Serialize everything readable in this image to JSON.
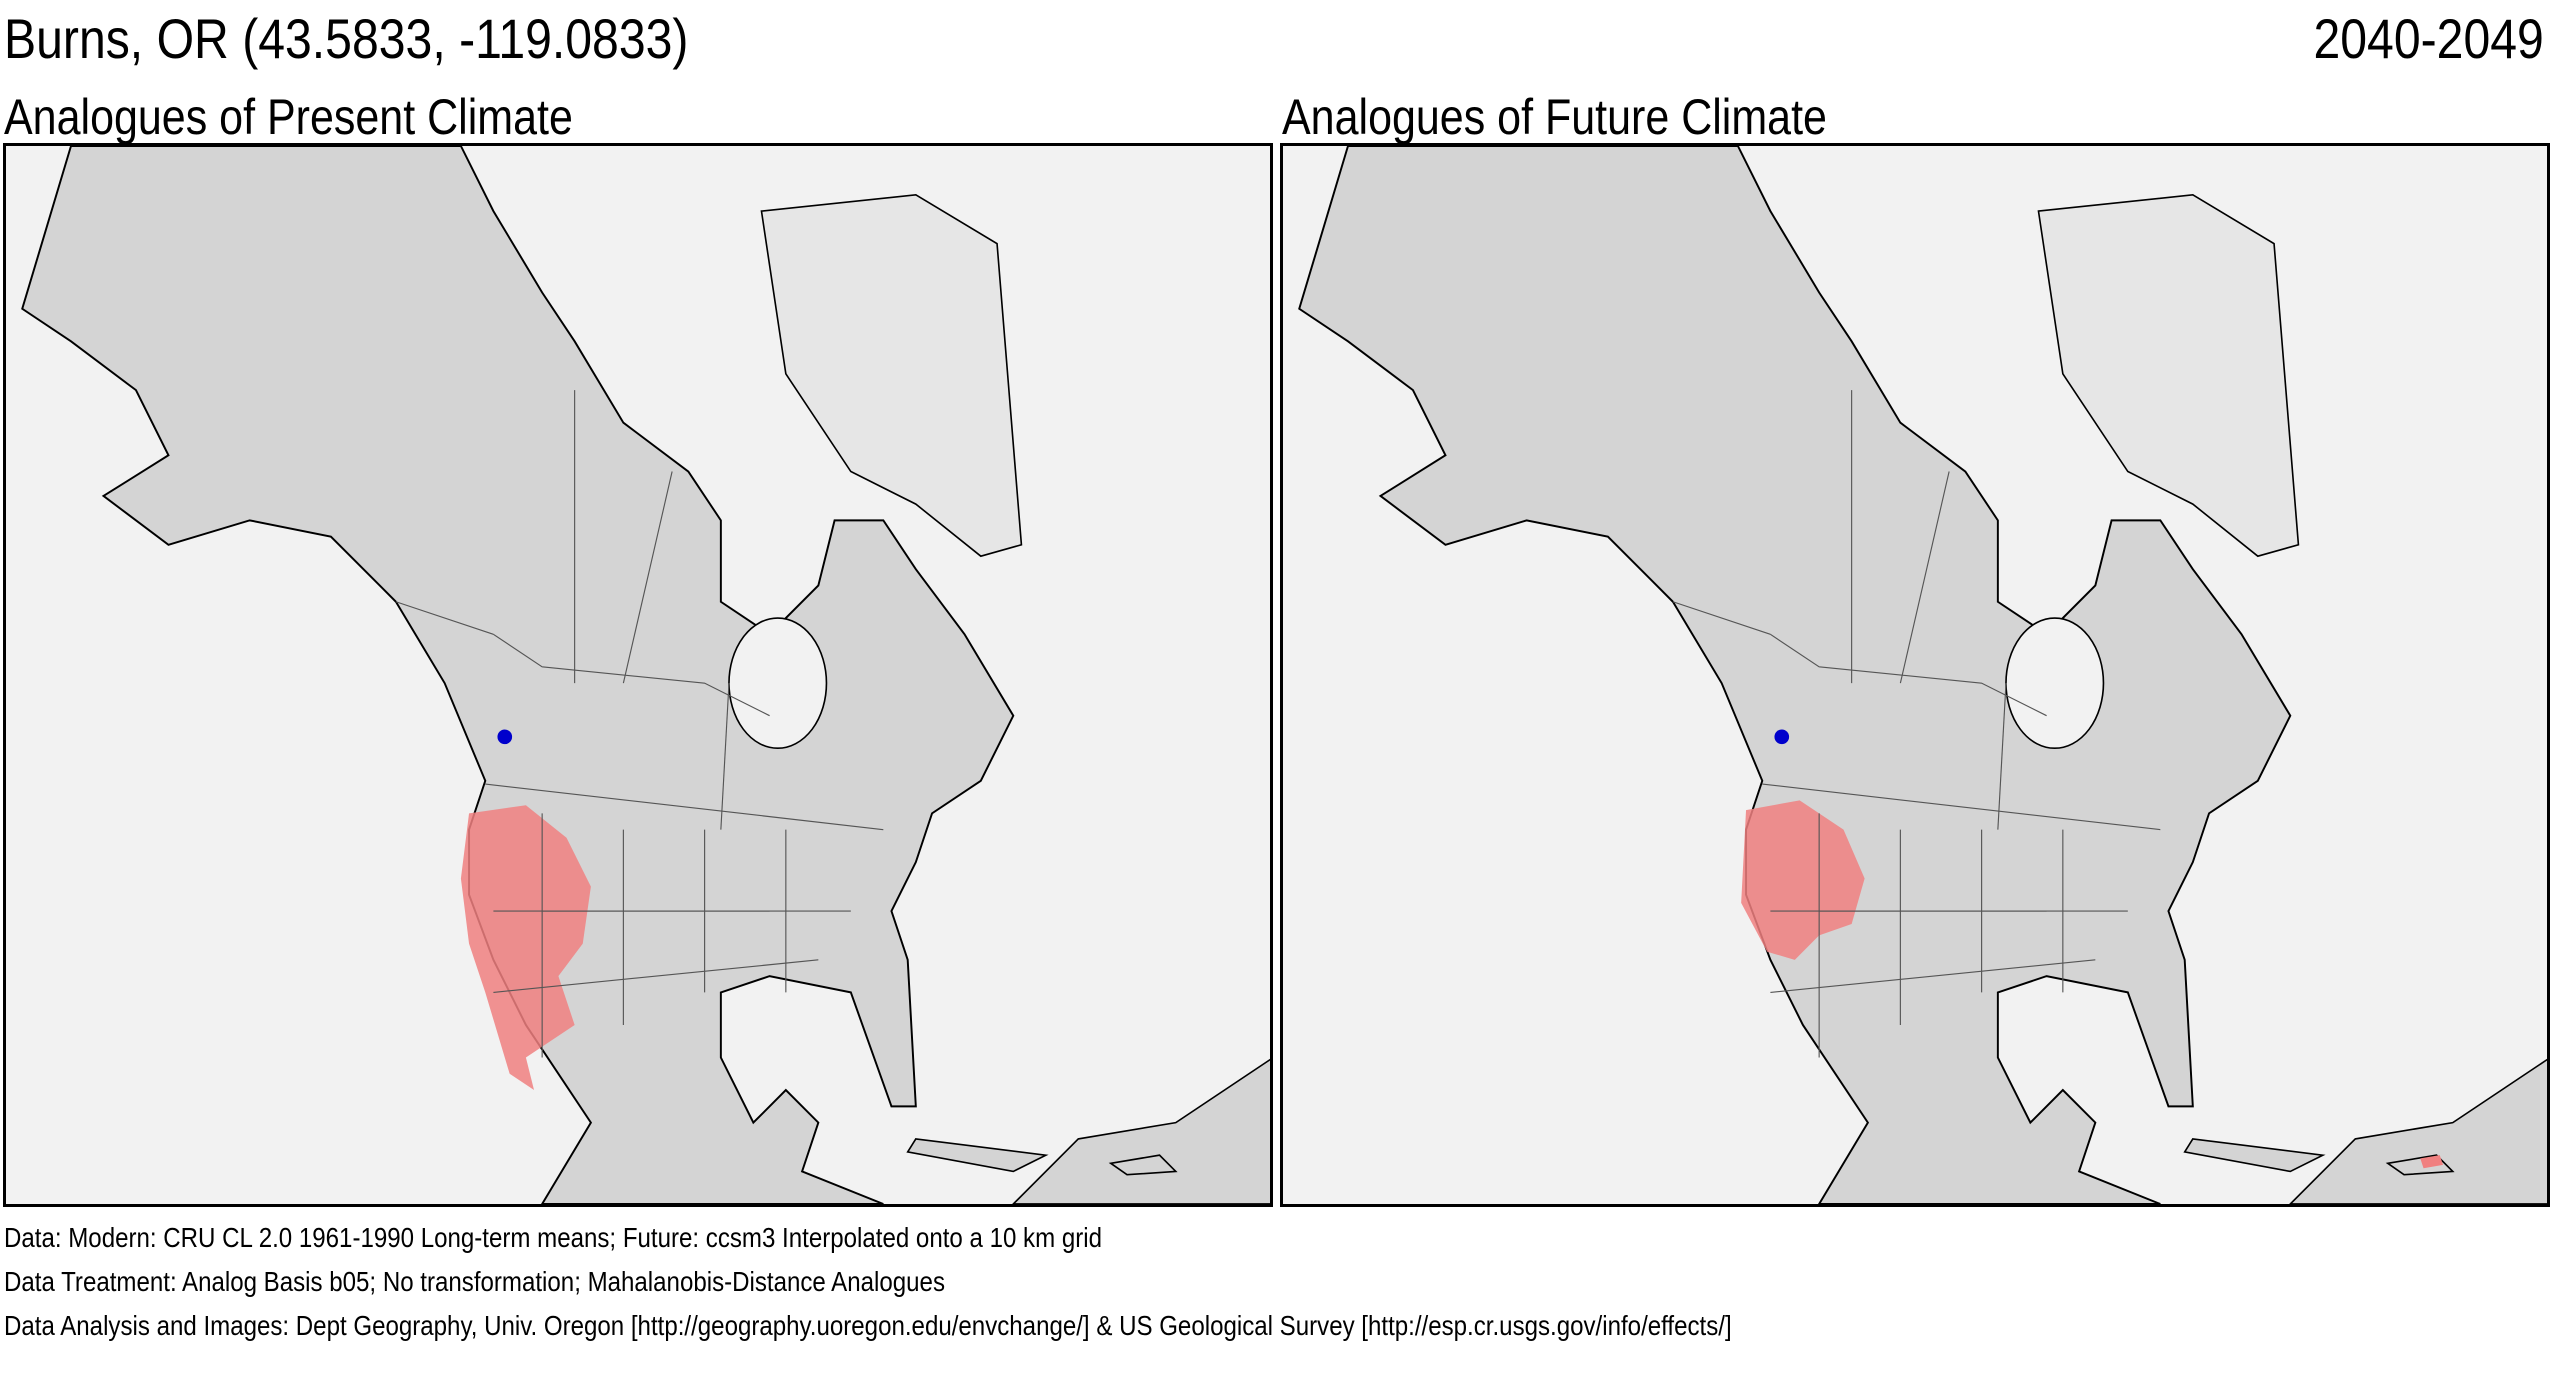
{
  "header": {
    "title": "Burns, OR  (43.5833, -119.0833)",
    "period": "2040-2049"
  },
  "panels": [
    {
      "title": "Analogues of Present Climate",
      "analog_color": "#f08080",
      "marker_color": "#0000cc",
      "marker_location": "Burns, OR"
    },
    {
      "title": "Analogues of Future Climate",
      "analog_color": "#f08080",
      "marker_color": "#0000cc",
      "marker_location": "Burns, OR"
    }
  ],
  "footer": {
    "data": "Data:  Modern: CRU CL 2.0 1961-1990 Long-term means; Future: ccsm3 Interpolated onto a 10 km grid",
    "treatment": "Data Treatment:  Analog Basis b05; No transformation; Mahalanobis-Distance Analogues",
    "credits": "Data Analysis and Images:  Dept Geography, Univ. Oregon [http://geography.uoregon.edu/envchange/] & US Geological Survey [http://esp.cr.usgs.gov/info/effects/]"
  }
}
